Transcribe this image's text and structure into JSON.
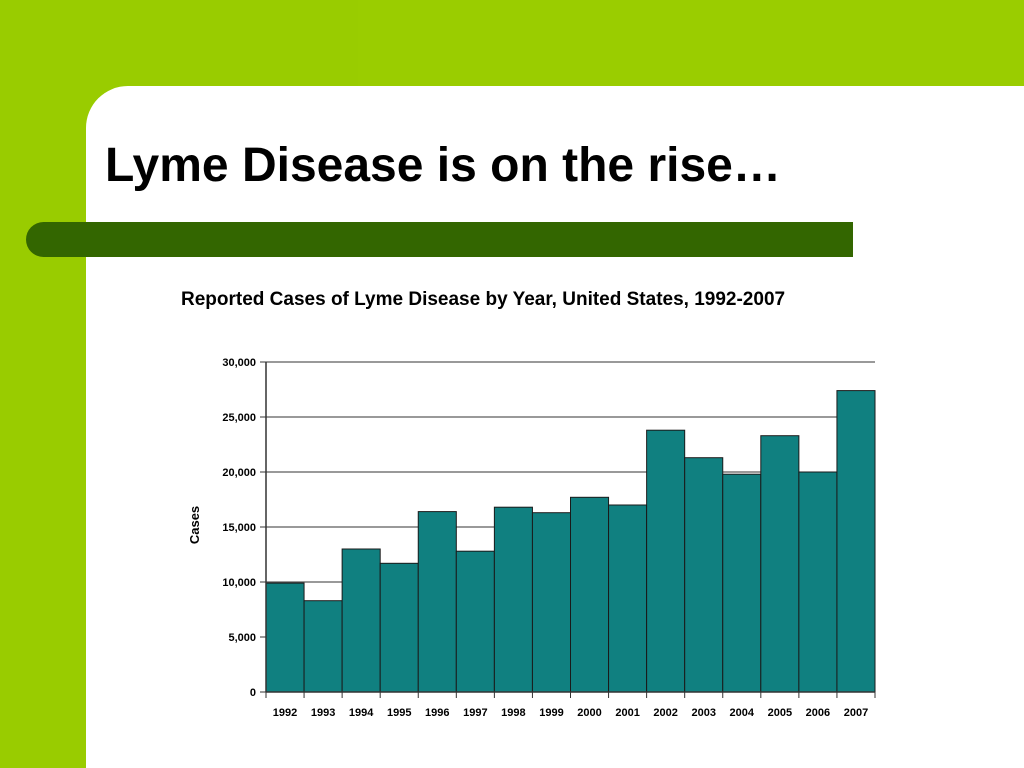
{
  "slide": {
    "title": "Lyme Disease is on the rise…",
    "accent_green": "#99cc00",
    "bar_green": "#336600"
  },
  "chart_data": {
    "type": "bar",
    "title": "Reported Cases of Lyme Disease by Year, United States, 1992-2007",
    "xlabel": "",
    "ylabel": "Cases",
    "categories": [
      "1992",
      "1993",
      "1994",
      "1995",
      "1996",
      "1997",
      "1998",
      "1999",
      "2000",
      "2001",
      "2002",
      "2003",
      "2004",
      "2005",
      "2006",
      "2007"
    ],
    "values": [
      9900,
      8300,
      13000,
      11700,
      16400,
      12800,
      16800,
      16300,
      17700,
      17000,
      23800,
      21300,
      19800,
      23300,
      20000,
      27400
    ],
    "ylim": [
      0,
      30000
    ],
    "yticks": [
      0,
      5000,
      10000,
      15000,
      20000,
      25000,
      30000
    ],
    "ytick_labels": [
      "0",
      "5,000",
      "10,000",
      "15,000",
      "20,000",
      "25,000",
      "30,000"
    ],
    "grid": true,
    "bar_color": "#108080",
    "legend": "none"
  }
}
